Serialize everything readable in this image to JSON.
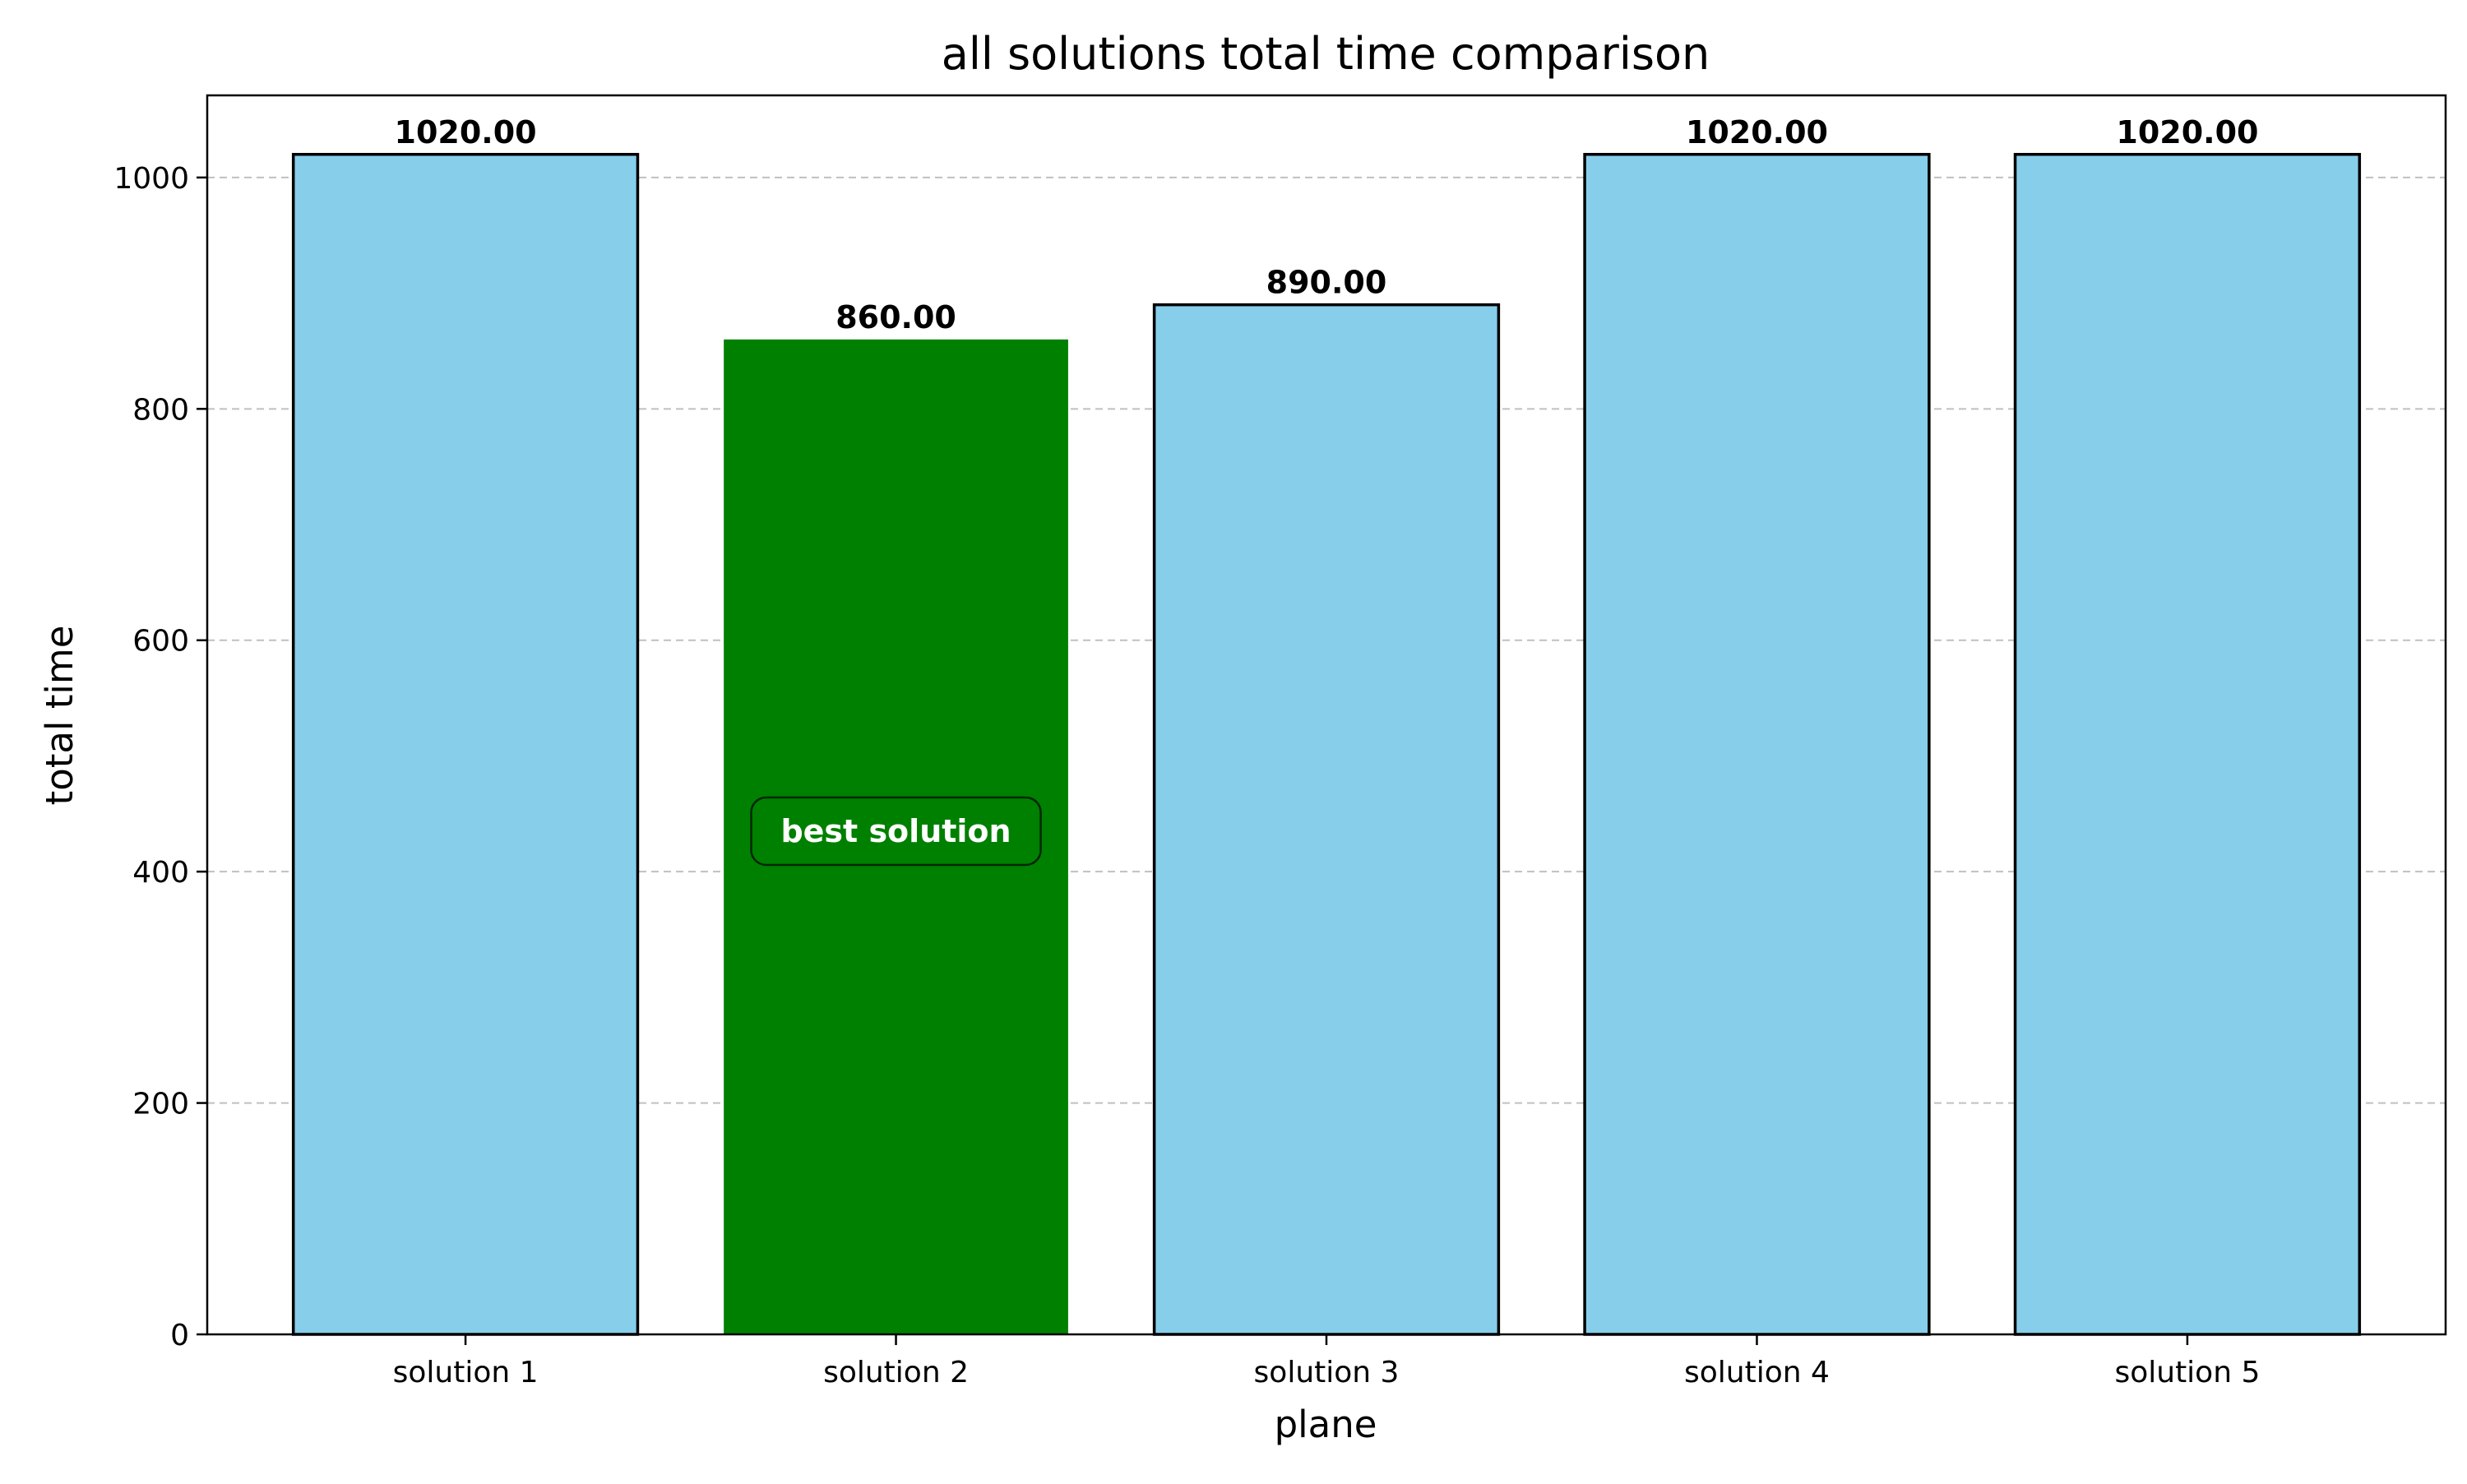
{
  "chart_data": {
    "type": "bar",
    "title": "all solutions total time comparison",
    "xlabel": "plane",
    "ylabel": "total time",
    "categories": [
      "solution 1",
      "solution 2",
      "solution 3",
      "solution 4",
      "solution 5"
    ],
    "values": [
      1020.0,
      860.0,
      890.0,
      1020.0,
      1020.0
    ],
    "value_labels": [
      "1020.00",
      "860.00",
      "890.00",
      "1020.00",
      "1020.00"
    ],
    "ylim": [
      0,
      1071
    ],
    "yticks": [
      0,
      200,
      400,
      600,
      800,
      1000
    ],
    "ytick_labels": [
      "0",
      "200",
      "400",
      "600",
      "800",
      "1000"
    ],
    "grid": "y-dashed",
    "colors": {
      "default_bar": "#87ceeb",
      "best_bar": "#008000",
      "bar_edge": "#000000",
      "grid": "#c0c0c0",
      "annotation_text": "#ffffff"
    },
    "highlight_index": 1,
    "annotation": {
      "text": "best solution",
      "bar_index": 1,
      "y": 430
    }
  }
}
